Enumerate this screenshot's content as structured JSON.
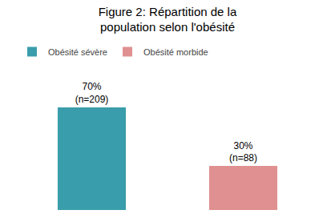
{
  "chart_data": {
    "type": "bar",
    "title": "Figure 2: Répartition de la\npopulation selon l'obésité",
    "categories": [
      "Obésité sévère",
      "Obésité morbide"
    ],
    "values": [
      70,
      30
    ],
    "value_labels": [
      "70%\n(n=209)",
      "30%\n(n=88)"
    ],
    "colors": [
      "#3a9dab",
      "#e09090"
    ],
    "ylim": [
      0,
      100
    ],
    "tick_labels": false,
    "data_labels": true,
    "legend": "upper left"
  }
}
